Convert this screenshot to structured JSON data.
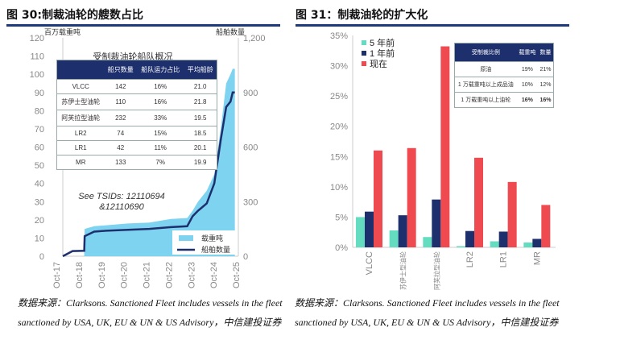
{
  "left": {
    "title": "图 30:制裁油轮的艘数占比",
    "source_line1": "数据来源：Clarksons. Sanctioned Fleet includes vessels in the fleet",
    "source_line2": "sanctioned by USA, UK, EU & UN & US Advisory，中信建投证券",
    "table_title": "受制裁油轮船队概况",
    "table_headers": [
      "",
      "船只数量",
      "船队运力占比",
      "平均船龄"
    ],
    "table_rows": [
      [
        "VLCC",
        "142",
        "16%",
        "21.0"
      ],
      [
        "苏伊士型油轮",
        "110",
        "16%",
        "21.8"
      ],
      [
        "阿芙拉型油轮",
        "232",
        "33%",
        "19.5"
      ],
      [
        "LR2",
        "74",
        "15%",
        "18.5"
      ],
      [
        "LR1",
        "42",
        "11%",
        "20.1"
      ],
      [
        "MR",
        "133",
        "7%",
        "19.9"
      ]
    ],
    "annotation": "See TSIDs: 12110694 &12110690"
  },
  "right": {
    "title": "图 31：制裁油轮的扩大化",
    "source_line1": "数据来源：Clarksons. Sanctioned Fleet includes vessels in the fleet",
    "source_line2": "sanctioned by USA, UK, EU & UN & US Advisory，中信建投证券",
    "table_headers": [
      "受制裁比例",
      "载重吨",
      "数量"
    ],
    "table_rows": [
      [
        "原油",
        "19%",
        "21%"
      ],
      [
        "1 万载重吨以上成品油",
        "10%",
        "12%"
      ],
      [
        "1 万载重吨以上油轮",
        "16%",
        "16%"
      ]
    ]
  },
  "chart_data": [
    {
      "type": "area+line",
      "ylabel_left": "百万载重吨",
      "ylabel_right": "船舶数量",
      "ylim_left": [
        0,
        120
      ],
      "ylim_right": [
        0,
        1200
      ],
      "yticks_left": [
        "0",
        "10",
        "20",
        "30",
        "40",
        "50",
        "60",
        "70",
        "80",
        "90",
        "100",
        "110",
        "120"
      ],
      "yticks_right": [
        "0",
        "300",
        "600",
        "900",
        "1,200"
      ],
      "xticks": [
        "Oct-17",
        "Oct-18",
        "Oct-19",
        "Oct-20",
        "Oct-21",
        "Oct-22",
        "Oct-23",
        "Oct-24",
        "Oct-25"
      ],
      "x": [
        2017.75,
        2018.2,
        2018.74,
        2018.76,
        2019.2,
        2019.75,
        2020.75,
        2021.75,
        2022.75,
        2023.5,
        2023.75,
        2024.0,
        2024.4,
        2024.75,
        2024.95,
        2025.05,
        2025.3,
        2025.5,
        2025.6,
        2025.7
      ],
      "series": [
        {
          "name": "载重吨",
          "values": [
            0,
            0,
            0,
            15,
            16.5,
            17,
            18,
            18.5,
            20.5,
            21,
            25,
            30,
            36,
            45,
            62,
            70,
            95,
            100,
            103,
            103
          ]
        },
        {
          "name": "船舶数量",
          "values": [
            0,
            28,
            30,
            110,
            135,
            140,
            145,
            150,
            160,
            165,
            220,
            250,
            290,
            400,
            560,
            640,
            820,
            850,
            900,
            900
          ]
        }
      ],
      "grid": false,
      "legend": "bottom-right",
      "colors": {
        "载重吨": "#7dd3f0",
        "船舶数量": "#1e2f6e"
      }
    },
    {
      "type": "bar",
      "categories": [
        "VLCC",
        "苏伊士型油轮",
        "阿芙拉型油轮",
        "LR2",
        "LR1",
        "MR"
      ],
      "ylim": [
        0,
        35
      ],
      "yticks": [
        "0%",
        "5%",
        "10%",
        "15%",
        "20%",
        "25%",
        "30%",
        "35%"
      ],
      "series": [
        {
          "name": "5 年前",
          "values": [
            5.0,
            2.8,
            1.7,
            0.2,
            1.0,
            0.8
          ],
          "color": "#63dcc0"
        },
        {
          "name": "1 年前",
          "values": [
            5.9,
            5.3,
            7.9,
            2.7,
            2.6,
            1.4
          ],
          "color": "#1e2f6e"
        },
        {
          "name": "现在",
          "values": [
            16.0,
            16.4,
            33.2,
            14.8,
            10.8,
            7.0
          ],
          "color": "#ef4a50"
        }
      ],
      "legend": "top-left",
      "grid": false
    }
  ]
}
